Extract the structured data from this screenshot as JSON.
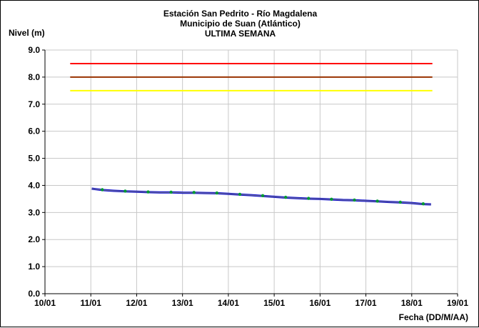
{
  "chart_data": {
    "type": "line",
    "title": "Estación San Pedrito - Río Magdalena",
    "subtitle": "Municipio de Suan (Atlántico)",
    "subtitle2": "ULTIMA SEMANA",
    "ylabel": "Nivel (m)",
    "xlabel": "Fecha (DD/M/AA)",
    "ylim": [
      0,
      9
    ],
    "yticks": [
      "0.0",
      "1.0",
      "2.0",
      "3.0",
      "4.0",
      "5.0",
      "6.0",
      "7.0",
      "8.0",
      "9.0"
    ],
    "xlim": [
      0,
      9
    ],
    "xticks": [
      "10/01",
      "11/01",
      "12/01",
      "13/01",
      "14/01",
      "15/01",
      "16/01",
      "17/01",
      "18/01",
      "19/01"
    ],
    "grid": "horizontal-and-vertical",
    "thresholds": [
      {
        "value": 8.5,
        "color": "#ff0000",
        "x_start": 0.55,
        "x_end": 8.45
      },
      {
        "value": 8.0,
        "color": "#993300",
        "x_start": 0.55,
        "x_end": 8.45
      },
      {
        "value": 7.5,
        "color": "#ffff00",
        "x_start": 0.55,
        "x_end": 8.45
      }
    ],
    "series": [
      {
        "color": "#0000cc",
        "points": [
          [
            1.02,
            3.88
          ],
          [
            1.1,
            3.86
          ],
          [
            1.25,
            3.83
          ],
          [
            1.5,
            3.8
          ],
          [
            1.75,
            3.78
          ],
          [
            2.0,
            3.77
          ],
          [
            2.25,
            3.75
          ],
          [
            2.5,
            3.74
          ],
          [
            2.75,
            3.74
          ],
          [
            3.0,
            3.73
          ],
          [
            3.25,
            3.73
          ],
          [
            3.5,
            3.72
          ],
          [
            3.75,
            3.71
          ],
          [
            4.0,
            3.69
          ],
          [
            4.25,
            3.66
          ],
          [
            4.5,
            3.64
          ],
          [
            4.75,
            3.61
          ],
          [
            5.0,
            3.58
          ],
          [
            5.25,
            3.55
          ],
          [
            5.5,
            3.53
          ],
          [
            5.75,
            3.51
          ],
          [
            6.0,
            3.5
          ],
          [
            6.25,
            3.48
          ],
          [
            6.5,
            3.46
          ],
          [
            6.75,
            3.45
          ],
          [
            7.0,
            3.43
          ],
          [
            7.25,
            3.41
          ],
          [
            7.5,
            3.39
          ],
          [
            7.75,
            3.37
          ],
          [
            8.0,
            3.35
          ],
          [
            8.25,
            3.31
          ],
          [
            8.42,
            3.3
          ]
        ]
      }
    ],
    "markers": {
      "color": "#009933",
      "points": [
        [
          1.25,
          3.84
        ],
        [
          1.75,
          3.79
        ],
        [
          2.25,
          3.76
        ],
        [
          2.75,
          3.75
        ],
        [
          3.25,
          3.74
        ],
        [
          3.75,
          3.72
        ],
        [
          4.25,
          3.67
        ],
        [
          4.75,
          3.62
        ],
        [
          5.25,
          3.56
        ],
        [
          5.75,
          3.52
        ],
        [
          6.25,
          3.49
        ],
        [
          6.75,
          3.46
        ],
        [
          7.25,
          3.42
        ],
        [
          7.75,
          3.38
        ],
        [
          8.25,
          3.32
        ]
      ]
    }
  }
}
